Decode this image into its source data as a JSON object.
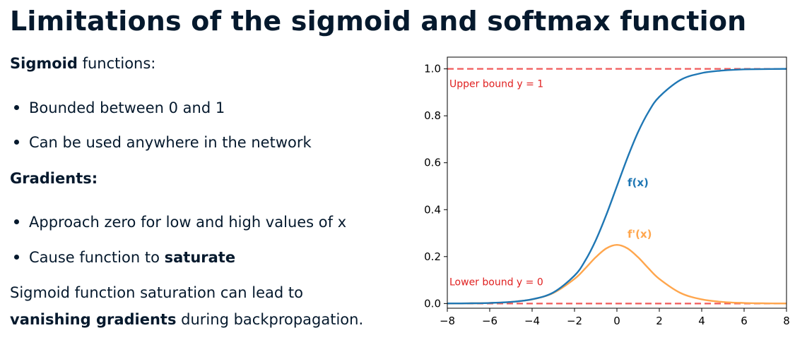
{
  "title": "Limitations of the sigmoid and softmax function",
  "left": {
    "sigmoid_heading_bold": "Sigmoid",
    "sigmoid_heading_rest": " functions:",
    "sigmoid_bullets": [
      "Bounded between 0 and 1",
      "Can be used anywhere in the network"
    ],
    "gradients_heading": "Gradients:",
    "gradient_bullet_1": "Approach zero for low and high values of x",
    "gradient_bullet_2_pre": "Cause function to ",
    "gradient_bullet_2_bold": "saturate",
    "conclusion_line_1": "Sigmoid function saturation can lead to",
    "conclusion_bold": "vanishing gradients",
    "conclusion_rest": " during backpropagation."
  },
  "chart_data": {
    "type": "line",
    "xlim": [
      -8,
      8
    ],
    "ylim": [
      -0.02,
      1.05
    ],
    "xticks": [
      -8,
      -6,
      -4,
      -2,
      0,
      2,
      4,
      6,
      8
    ],
    "xtick_labels": [
      "−8",
      "−6",
      "−4",
      "−2",
      "0",
      "2",
      "4",
      "6",
      "8"
    ],
    "yticks": [
      0.0,
      0.2,
      0.4,
      0.6,
      0.8,
      1.0
    ],
    "ytick_labels": [
      "0.0",
      "0.2",
      "0.4",
      "0.6",
      "0.8",
      "1.0"
    ],
    "grid": false,
    "series": [
      {
        "name": "f(x)",
        "color": "#1f77b4",
        "x": [
          -8,
          -7,
          -6,
          -5,
          -4,
          -3,
          -2,
          -1.5,
          -1,
          -0.5,
          0,
          0.5,
          1,
          1.5,
          2,
          3,
          4,
          5,
          6,
          7,
          8
        ],
        "y": [
          0.0003,
          0.0009,
          0.0025,
          0.0067,
          0.018,
          0.047,
          0.119,
          0.182,
          0.269,
          0.378,
          0.5,
          0.622,
          0.731,
          0.818,
          0.881,
          0.953,
          0.982,
          0.993,
          0.998,
          0.999,
          1.0
        ]
      },
      {
        "name": "f'(x)",
        "color": "#ffa64d",
        "x": [
          -8,
          -7,
          -6,
          -5,
          -4,
          -3,
          -2,
          -1.5,
          -1,
          -0.5,
          0,
          0.5,
          1,
          1.5,
          2,
          3,
          4,
          5,
          6,
          7,
          8
        ],
        "y": [
          0.0003,
          0.0009,
          0.0025,
          0.0066,
          0.0177,
          0.045,
          0.105,
          0.149,
          0.197,
          0.235,
          0.25,
          0.235,
          0.197,
          0.149,
          0.105,
          0.045,
          0.0177,
          0.0066,
          0.0025,
          0.0009,
          0.0003
        ]
      }
    ],
    "reference_lines": [
      {
        "y": 1.0,
        "label": "Upper bound y = 1",
        "color": "#f05a5a"
      },
      {
        "y": 0.0,
        "label": "Lower bound y = 0",
        "color": "#f05a5a"
      }
    ],
    "series_labels": [
      {
        "text": "f(x)",
        "x": 0.5,
        "y": 0.5,
        "color": "#1f77b4"
      },
      {
        "text": "f'(x)",
        "x": 0.5,
        "y": 0.28,
        "color": "#ffa64d"
      }
    ]
  }
}
